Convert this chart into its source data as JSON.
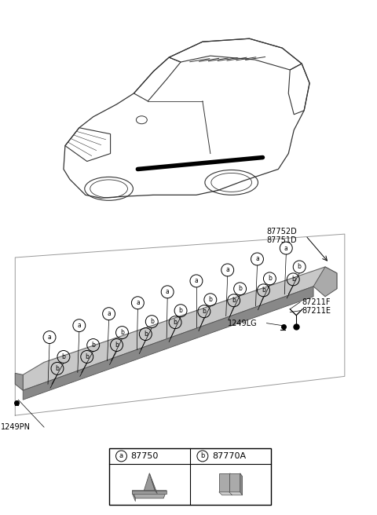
{
  "bg_color": "#ffffff",
  "legend_a_label": "87750",
  "legend_b_label": "87770A",
  "car_color": "#333333",
  "strip_top_color": "#c8c8c8",
  "strip_face_color": "#888888",
  "strip_tip_color": "#555555",
  "box_color": "#aaaaaa",
  "label_87752D": "87752D",
  "label_87751D": "87751D",
  "label_87211F": "87211F",
  "label_87211E": "87211E",
  "label_1249LG": "1249LG",
  "label_1249PN": "1249PN"
}
